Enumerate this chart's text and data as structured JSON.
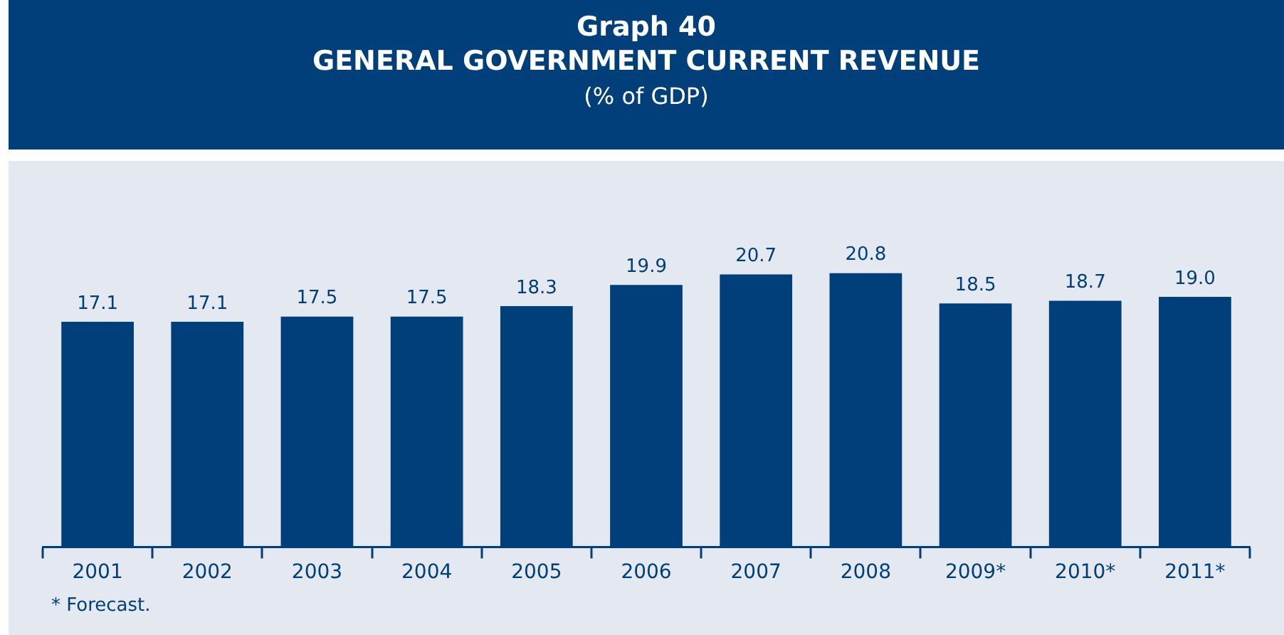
{
  "chart_data": {
    "type": "bar",
    "title": "GENERAL GOVERNMENT CURRENT REVENUE",
    "subtitle": "(% of GDP)",
    "annotations": [
      "Graph 40",
      "*   Forecast."
    ],
    "categories": [
      "2001",
      "2002",
      "2003",
      "2004",
      "2005",
      "2006",
      "2007",
      "2008",
      "2009*",
      "2010*",
      "2011*"
    ],
    "values": [
      17.1,
      17.1,
      17.5,
      17.5,
      18.3,
      19.9,
      20.7,
      20.8,
      18.5,
      18.7,
      19.0
    ],
    "value_labels": [
      "17.1",
      "17.1",
      "17.5",
      "17.5",
      "18.3",
      "19.9",
      "20.7",
      "20.8",
      "18.5",
      "18.7",
      "19.0"
    ],
    "color": "#003f7a",
    "grid": false,
    "legend": false
  }
}
